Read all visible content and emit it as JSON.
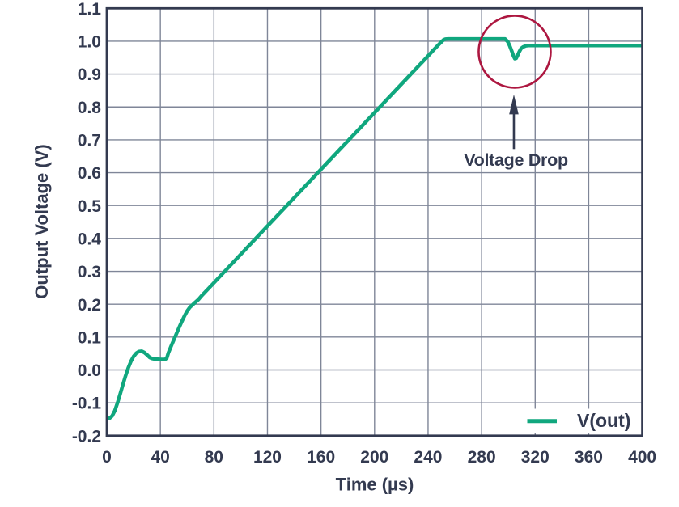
{
  "chart_data": {
    "type": "line",
    "title": "",
    "xlabel": "Time (µs)",
    "ylabel": "Output Voltage (V)",
    "xlim": [
      0,
      400
    ],
    "ylim": [
      -0.2,
      1.1
    ],
    "grid": true,
    "xticks": [
      0,
      40,
      80,
      120,
      160,
      200,
      240,
      280,
      320,
      360,
      400
    ],
    "xtick_labels": [
      "0",
      "40",
      "80",
      "120",
      "160",
      "200",
      "240",
      "280",
      "320",
      "360",
      "400"
    ],
    "yticks": [
      -0.2,
      -0.1,
      0.0,
      0.1,
      0.2,
      0.3,
      0.4,
      0.5,
      0.6,
      0.7,
      0.8,
      0.9,
      1.0,
      1.1
    ],
    "ytick_labels": [
      "-0.2",
      "-0.1",
      "0.0",
      "0.1",
      "0.2",
      "0.3",
      "0.4",
      "0.5",
      "0.6",
      "0.7",
      "0.8",
      "0.9",
      "1.0",
      "1.1"
    ],
    "legend": {
      "position": "lower right",
      "entries": [
        {
          "label": "V(out)",
          "color": "#10a77e"
        }
      ]
    },
    "series": [
      {
        "name": "V(out)",
        "color": "#10a77e",
        "points": [
          [
            0,
            -0.148
          ],
          [
            2,
            -0.147
          ],
          [
            4,
            -0.14
          ],
          [
            6,
            -0.124
          ],
          [
            8,
            -0.1
          ],
          [
            10,
            -0.073
          ],
          [
            12,
            -0.045
          ],
          [
            14,
            -0.018
          ],
          [
            16,
            0.006
          ],
          [
            18,
            0.026
          ],
          [
            20,
            0.041
          ],
          [
            22,
            0.051
          ],
          [
            24,
            0.056
          ],
          [
            26,
            0.057
          ],
          [
            28,
            0.053
          ],
          [
            30,
            0.046
          ],
          [
            32,
            0.038
          ],
          [
            34,
            0.0345
          ],
          [
            36,
            0.033
          ],
          [
            38,
            0.0325
          ],
          [
            41,
            0.032
          ],
          [
            43.5,
            0.032
          ],
          [
            44.8,
            0.036
          ],
          [
            46,
            0.052
          ],
          [
            48,
            0.072
          ],
          [
            50,
            0.091
          ],
          [
            52,
            0.11
          ],
          [
            54,
            0.129
          ],
          [
            56,
            0.147
          ],
          [
            58,
            0.164
          ],
          [
            60,
            0.179
          ],
          [
            62,
            0.1905
          ],
          [
            64,
            0.198
          ],
          [
            66,
            0.2055
          ],
          [
            68.5,
            0.2145
          ],
          [
            71,
            0.2265
          ],
          [
            75,
            0.2435
          ],
          [
            80,
            0.265
          ],
          [
            120,
            0.4376
          ],
          [
            160,
            0.6101
          ],
          [
            200,
            0.7827
          ],
          [
            240,
            0.9552
          ],
          [
            244,
            0.973
          ],
          [
            248,
            0.99
          ],
          [
            250,
            0.998
          ],
          [
            251.5,
            1.004
          ],
          [
            253,
            1.0065
          ],
          [
            255,
            1.007
          ],
          [
            297.5,
            1.007
          ],
          [
            299.5,
            0.999
          ],
          [
            301,
            0.986
          ],
          [
            302.5,
            0.97
          ],
          [
            303.8,
            0.955
          ],
          [
            304.8,
            0.947
          ],
          [
            305.8,
            0.948
          ],
          [
            306.8,
            0.956
          ],
          [
            308,
            0.967
          ],
          [
            309.5,
            0.978
          ],
          [
            311,
            0.9825
          ],
          [
            313,
            0.986
          ],
          [
            315,
            0.987
          ],
          [
            400,
            0.987
          ]
        ]
      }
    ],
    "annotations": {
      "circle": {
        "center_t": 304.7,
        "center_v": 0.968,
        "radius_px": 44.5,
        "color": "#ad1740"
      },
      "arrow": {
        "t": 304.1,
        "from_v": 0.672,
        "tip_v": 0.838
      },
      "label": {
        "text": "Voltage Drop",
        "t": 305.6,
        "v_baseline": 0.621
      }
    },
    "colors": {
      "background": "#ffffff",
      "axis": "#333a50",
      "grid": "#7f8698",
      "curve": "#10a77e",
      "circle": "#ad1740",
      "text": "#333a50"
    }
  }
}
